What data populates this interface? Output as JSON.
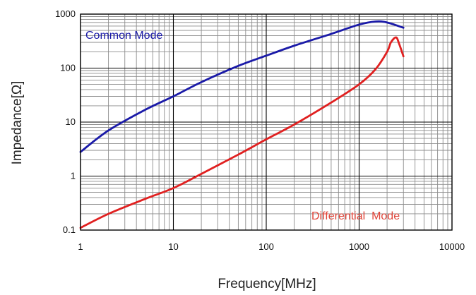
{
  "chart_data": {
    "type": "line",
    "title": "",
    "xlabel": "Frequency[MHz]",
    "ylabel": "Impedance[Ω]",
    "x_scale": "log",
    "y_scale": "log",
    "xlim": [
      1,
      10000
    ],
    "ylim": [
      0.1,
      1000
    ],
    "grid": true,
    "x_tick_labels": [
      "1",
      "10",
      "100",
      "1000",
      "10000"
    ],
    "y_tick_labels": [
      "0.1",
      "1",
      "10",
      "100",
      "1000"
    ],
    "colors": {
      "common_mode": "#1a1aa8",
      "differential_mode": "#e02020",
      "grid_major": "#000000",
      "grid_minor": "#8c8c8c"
    },
    "annotations": [
      {
        "text": "Common Mode",
        "color": "#1a1aa8"
      },
      {
        "text": "Differential  Mode",
        "color": "#e0453a"
      }
    ],
    "series": [
      {
        "key": "common_mode",
        "x": [
          1,
          2,
          5,
          10,
          20,
          50,
          100,
          200,
          500,
          1000,
          1500,
          2000,
          3000
        ],
        "y": [
          2.8,
          7,
          17,
          30,
          55,
          110,
          170,
          260,
          430,
          640,
          730,
          700,
          560
        ]
      },
      {
        "key": "differential_mode",
        "x": [
          1,
          2,
          5,
          10,
          20,
          50,
          100,
          200,
          500,
          1000,
          1500,
          2000,
          2200,
          2500,
          2700,
          3000
        ],
        "y": [
          0.11,
          0.2,
          0.38,
          0.6,
          1.1,
          2.5,
          4.8,
          9,
          23,
          50,
          95,
          200,
          300,
          370,
          280,
          165
        ]
      }
    ]
  }
}
